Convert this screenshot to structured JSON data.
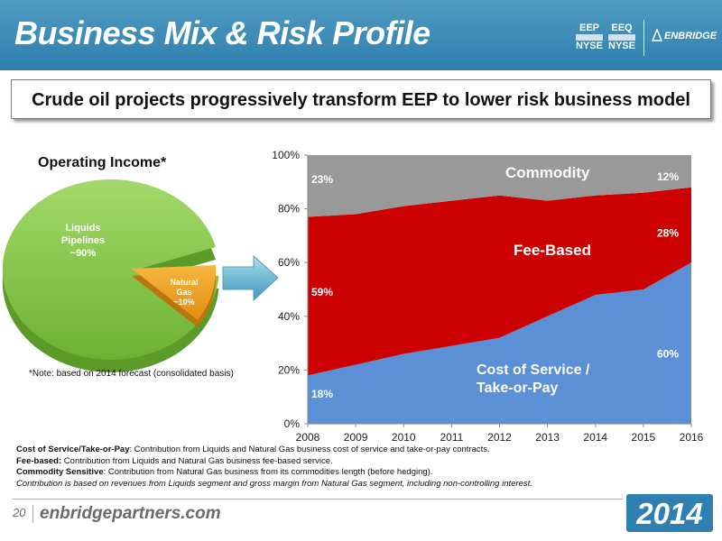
{
  "header": {
    "title": "Business Mix & Risk Profile",
    "tickers": [
      {
        "symbol": "EEP",
        "exchange": "NYSE"
      },
      {
        "symbol": "EEQ",
        "exchange": "NYSE"
      }
    ],
    "logo_text": "ENBRIDGE",
    "colors": {
      "header_bg": "#3a8cb8",
      "text": "#ffffff"
    }
  },
  "subtitle": "Crude oil projects progressively transform EEP to lower risk business model",
  "pie": {
    "title": "Operating Income*",
    "note": "*Note: based on 2014 forecast (consolidated basis)",
    "slices": [
      {
        "label_lines": [
          "Liquids",
          "Pipelines",
          "~90%"
        ],
        "value": 90,
        "color": "#7cc242"
      },
      {
        "label_lines": [
          "Natural",
          "Gas",
          "~10%"
        ],
        "value": 10,
        "color": "#f2a21e"
      }
    ]
  },
  "chart_data": {
    "type": "area",
    "stacked": true,
    "x": [
      "2008",
      "2009",
      "2010",
      "2011",
      "2012",
      "2013",
      "2014",
      "2015",
      "2016"
    ],
    "y_ticks": [
      "0%",
      "20%",
      "40%",
      "60%",
      "80%",
      "100%"
    ],
    "ylim": [
      0,
      100
    ],
    "grid": false,
    "series": [
      {
        "name": "Cost of Service / Take-or-Pay",
        "name_lines": [
          "Cost of Service /",
          "Take-or-Pay"
        ],
        "color": "#5b8fd6",
        "values": [
          18,
          22,
          26,
          29,
          32,
          40,
          48,
          50,
          60
        ]
      },
      {
        "name": "Fee-Based",
        "name_lines": [
          "Fee-Based"
        ],
        "color": "#cc0000",
        "values": [
          59,
          56,
          55,
          54,
          53,
          43,
          37,
          36,
          28
        ]
      },
      {
        "name": "Commodity",
        "name_lines": [
          "Commodity"
        ],
        "color": "#999999",
        "values": [
          23,
          22,
          19,
          17,
          15,
          17,
          15,
          14,
          12
        ]
      }
    ],
    "data_labels": [
      {
        "text": "23%",
        "x": "2008",
        "y": 91
      },
      {
        "text": "59%",
        "x": "2008",
        "y": 49
      },
      {
        "text": "18%",
        "x": "2008",
        "y": 11
      },
      {
        "text": "12%",
        "x": "2016",
        "y": 92
      },
      {
        "text": "28%",
        "x": "2016",
        "y": 71
      },
      {
        "text": "60%",
        "x": "2016",
        "y": 26
      }
    ]
  },
  "footnotes": [
    {
      "bold": "Cost of Service/Take-or-Pay",
      "text": ": Contribution from Liquids and Natural Gas business cost of service and take-or-pay contracts."
    },
    {
      "bold": "Fee-based:",
      "text": " Contribution from Liquids and Natural Gas business fee-based service."
    },
    {
      "bold": "Commodity Sensitive",
      "text": ": Contribution from Natural Gas business from its commodities length (before hedging)."
    },
    {
      "italic": "Contribution is based on revenues from Liquids segment and gross margin from Natural Gas segment, including non-controlling interest."
    }
  ],
  "footer": {
    "page_number": "20",
    "website": "enbridgepartners.com",
    "year": "2014"
  }
}
